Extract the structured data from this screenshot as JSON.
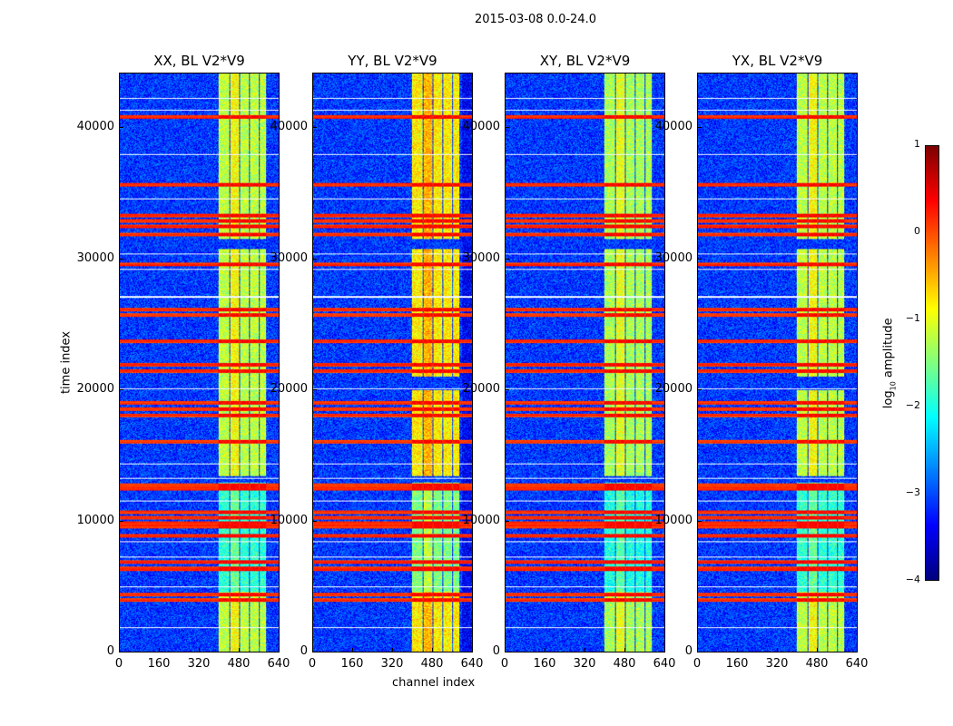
{
  "figure": {
    "suptitle": "2015-03-08 0.0-24.0",
    "xlabel": "channel index",
    "ylabel": "time index"
  },
  "colorbar": {
    "label_prefix": "log",
    "label_sub": "10",
    "label_suffix": " amplitude",
    "ticks": [
      "1",
      "0",
      "−1",
      "−2",
      "−3",
      "−4"
    ],
    "range": [
      -4,
      1
    ],
    "colormap": "jet"
  },
  "chart_data": {
    "type": "heatmap",
    "panels": [
      {
        "title": "XX, BL V2*V9",
        "pol": "XX",
        "band_level": -1.2
      },
      {
        "title": "YY, BL V2*V9",
        "pol": "YY",
        "band_level": -0.8
      },
      {
        "title": "XY, BL V2*V9",
        "pol": "XY",
        "band_level": -1.3
      },
      {
        "title": "YX, BL V2*V9",
        "pol": "YX",
        "band_level": -1.2
      }
    ],
    "x_range": [
      0,
      640
    ],
    "y_range": [
      0,
      44160
    ],
    "xticks": [
      "0",
      "160",
      "320",
      "480",
      "640"
    ],
    "yticks": [
      "0",
      "10000",
      "20000",
      "30000",
      "40000"
    ],
    "xtick_values": [
      0,
      160,
      320,
      480,
      640
    ],
    "ytick_values": [
      0,
      10000,
      20000,
      30000,
      40000
    ],
    "background_level": -3.1,
    "bright_channel_ranges": [
      [
        400,
        440
      ],
      [
        446,
        482
      ],
      [
        486,
        520
      ],
      [
        526,
        560
      ],
      [
        566,
        592
      ]
    ],
    "rfi_rows": [
      40900,
      35700,
      33300,
      32900,
      32500,
      31900,
      29600,
      26100,
      25700,
      23700,
      21900,
      21400,
      19000,
      18500,
      18000,
      16000,
      12700,
      12400,
      10600,
      10200,
      9800,
      9500,
      8800,
      6800,
      6300,
      4300,
      3900
    ],
    "blank_rows": [
      42300,
      41400,
      38000,
      34600,
      30400,
      29200,
      27100,
      20100,
      14300,
      13200,
      11500,
      8400,
      7200,
      4900,
      1800
    ]
  }
}
